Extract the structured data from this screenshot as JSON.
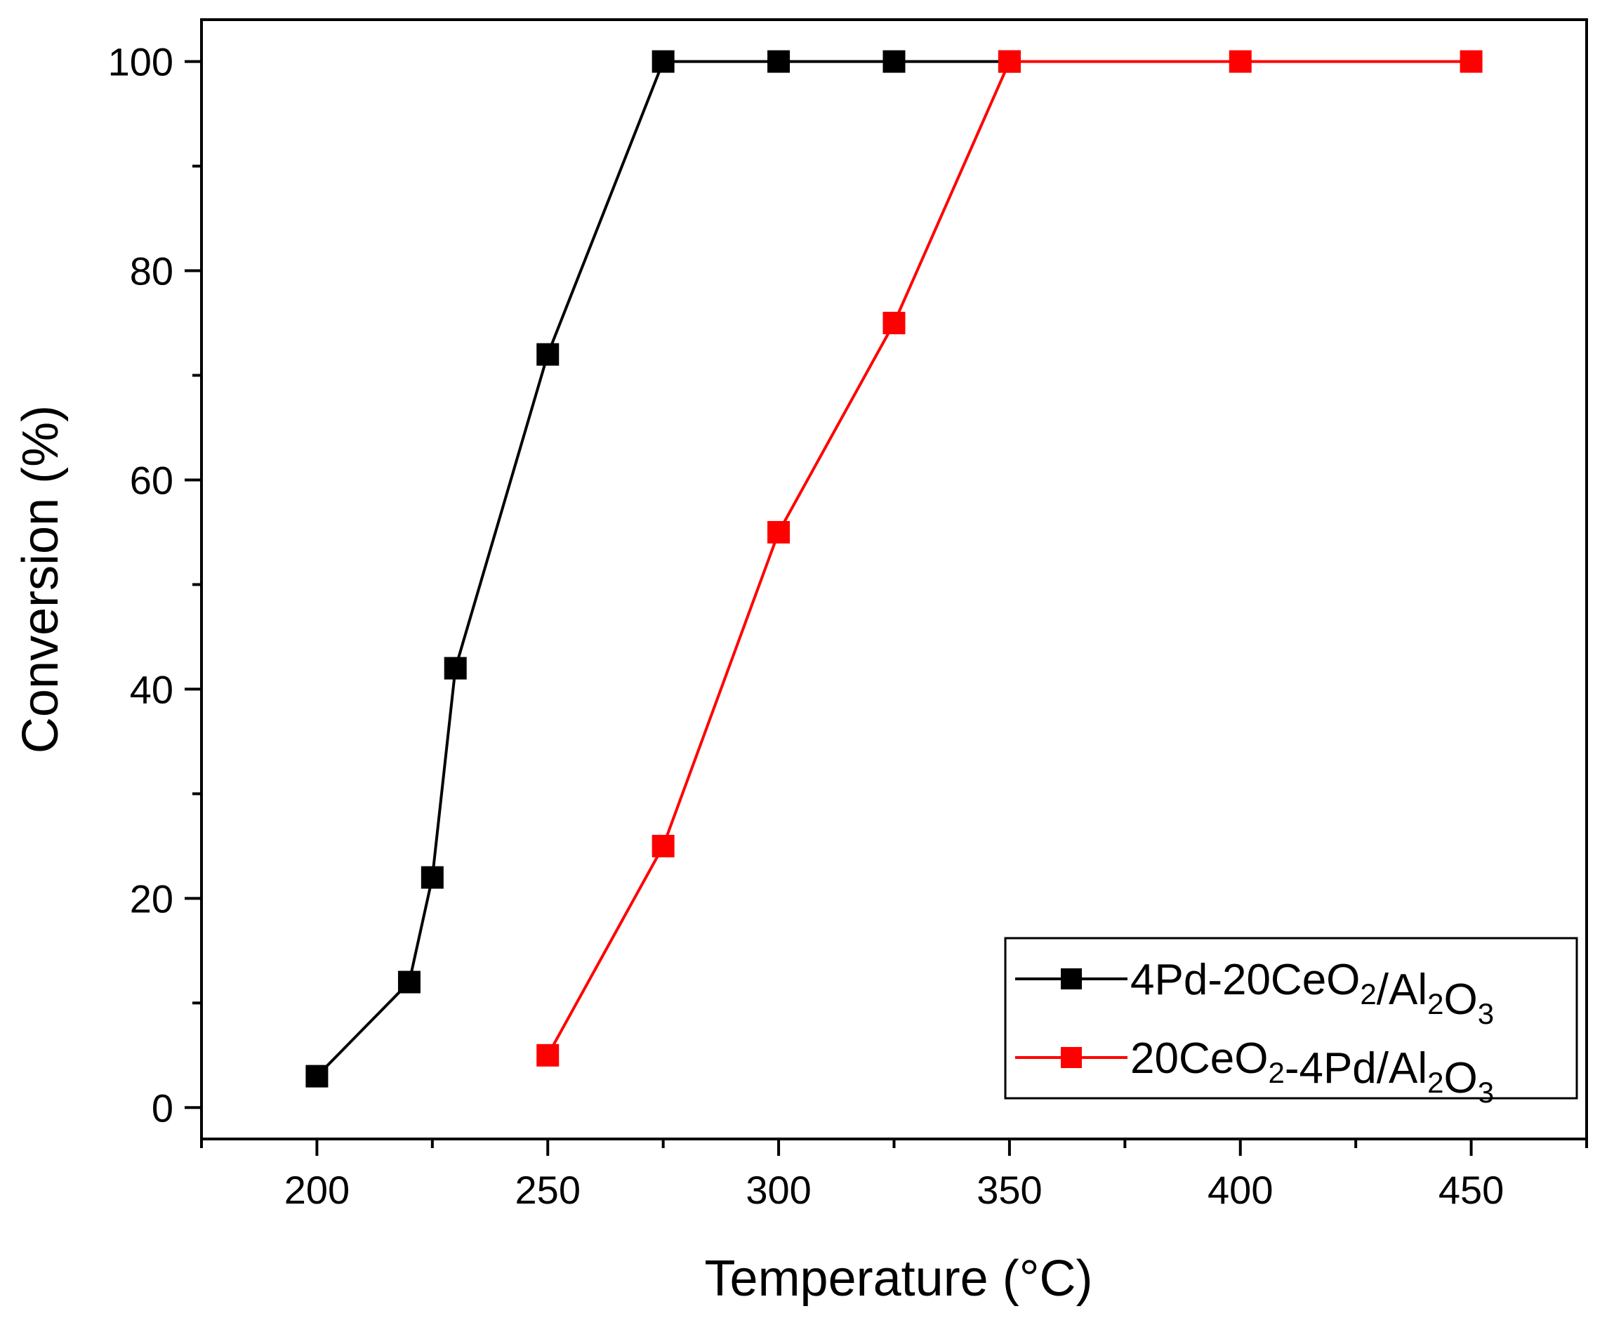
{
  "chart_data": {
    "type": "line",
    "title": "",
    "xlabel": "Temperature (°C)",
    "ylabel": "Conversion (%)",
    "xlim": [
      175,
      475
    ],
    "ylim": [
      -3,
      104
    ],
    "x_major_ticks": [
      200,
      250,
      300,
      350,
      400,
      450
    ],
    "x_minor_ticks": [
      175,
      225,
      275,
      325,
      375,
      425,
      475
    ],
    "y_major_ticks": [
      0,
      20,
      40,
      60,
      80,
      100
    ],
    "y_minor_ticks": [
      10,
      30,
      50,
      70,
      90
    ],
    "grid": false,
    "legend_position": "bottom-right",
    "marker": "square",
    "series": [
      {
        "name": "4Pd-20CeO2/Al2O3",
        "name_parts": [
          {
            "text": "4Pd-20CeO",
            "sub": false
          },
          {
            "text": "2",
            "sub": true
          },
          {
            "text": "/Al",
            "sub": false
          },
          {
            "text": "2",
            "sub": true
          },
          {
            "text": "O",
            "sub": false
          },
          {
            "text": "3",
            "sub": true
          }
        ],
        "color": "#000000",
        "x": [
          200,
          220,
          225,
          230,
          250,
          275,
          300,
          325,
          350
        ],
        "y": [
          3,
          12,
          22,
          42,
          72,
          100,
          100,
          100,
          100
        ]
      },
      {
        "name": "20CeO2-4Pd/Al2O3",
        "name_parts": [
          {
            "text": "20CeO",
            "sub": false
          },
          {
            "text": "2",
            "sub": true
          },
          {
            "text": "-4Pd/Al",
            "sub": false
          },
          {
            "text": "2",
            "sub": true
          },
          {
            "text": "O",
            "sub": false
          },
          {
            "text": "3",
            "sub": true
          }
        ],
        "color": "#ff0000",
        "x": [
          250,
          275,
          300,
          325,
          350,
          400,
          450
        ],
        "y": [
          5,
          25,
          55,
          75,
          100,
          100,
          100
        ]
      }
    ]
  }
}
